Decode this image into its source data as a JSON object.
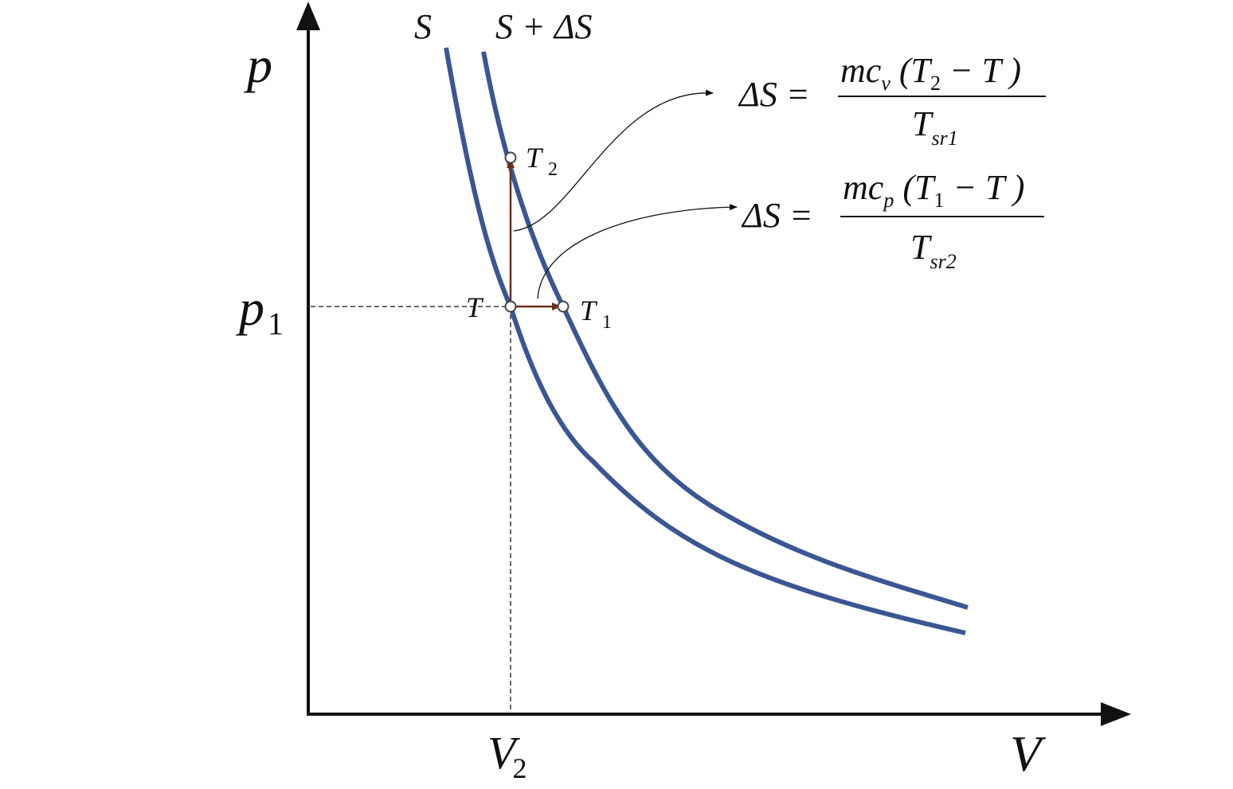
{
  "axes": {
    "y_label": "p",
    "x_label": "V"
  },
  "ticks": {
    "p1": {
      "symbol": "p",
      "subscript": "1"
    },
    "V2": {
      "symbol": "V",
      "subscript": "2"
    }
  },
  "curves": [
    {
      "label": "S"
    },
    {
      "label": "S + ΔS"
    }
  ],
  "points": [
    {
      "symbol": "T"
    },
    {
      "symbol": "T",
      "subscript": "2"
    },
    {
      "symbol": "T",
      "subscript": "1"
    }
  ],
  "formulas": [
    {
      "lhs": "ΔS =",
      "numerator": {
        "factor": "mc",
        "factor_subscript": "v",
        "open": " (T",
        "inner_subscript": "2",
        "rest": " − T )"
      },
      "denominator": {
        "symbol": "T",
        "subscript": "sr1"
      }
    },
    {
      "lhs": "ΔS =",
      "numerator": {
        "factor": "mc",
        "factor_subscript": "p",
        "open": " (T",
        "inner_subscript": "1",
        "rest": " − T )"
      },
      "denominator": {
        "symbol": "T",
        "subscript": "sr2"
      }
    }
  ]
}
